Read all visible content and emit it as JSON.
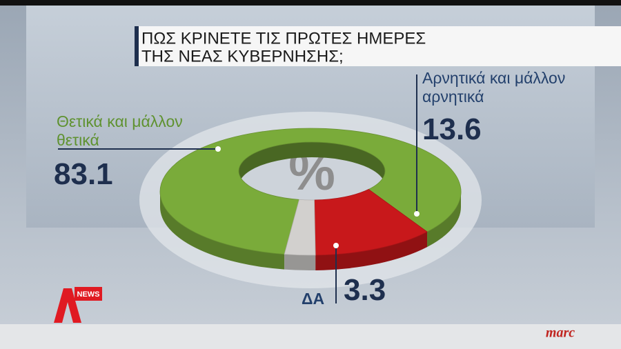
{
  "chart_data": {
    "type": "pie",
    "title": [
      "ΠΩΣ ΚΡΙΝΕΤΕ ΤΙΣ ΠΡΩΤΕΣ ΗΜΕΡΕΣ",
      "ΤΗΣ ΝΕΑΣ ΚΥΒΕΡΝΗΣΗΣ;"
    ],
    "center_label": "%",
    "categories": [
      "Θετικά και μάλλον θετικά",
      "Αρνητικά και μάλλον αρνητικά",
      "ΔΑ"
    ],
    "values": [
      83.1,
      13.6,
      3.3
    ],
    "colors": [
      "#7aab3a",
      "#c8181b",
      "#d2d0ce"
    ],
    "label_colors": [
      "#5f9230",
      "#23406c",
      "#23406c"
    ]
  },
  "logo": {
    "badge": "NEWS",
    "brand": "marc"
  }
}
